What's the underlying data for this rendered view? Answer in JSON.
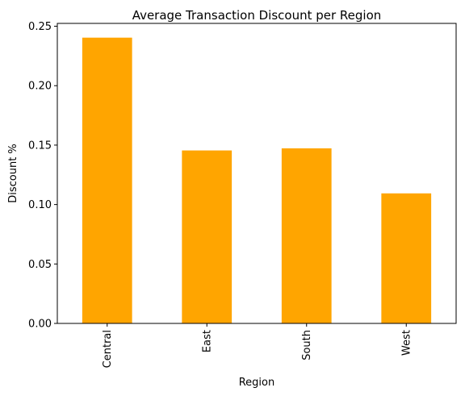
{
  "chart_data": {
    "type": "bar",
    "title": "Average Transaction Discount per Region",
    "xlabel": "Region",
    "ylabel": "Discount %",
    "categories": [
      "Central",
      "East",
      "South",
      "West"
    ],
    "values": [
      0.2404,
      0.1455,
      0.1473,
      0.1094
    ],
    "ylim": [
      0,
      0.2524
    ],
    "yticks": [
      "0.00",
      "0.05",
      "0.10",
      "0.15",
      "0.20",
      "0.25"
    ],
    "ytick_values": [
      0,
      0.05,
      0.1,
      0.15,
      0.2,
      0.25
    ],
    "grid": false,
    "bar_color": "#ffa500",
    "tick_rotation": "vertical"
  }
}
